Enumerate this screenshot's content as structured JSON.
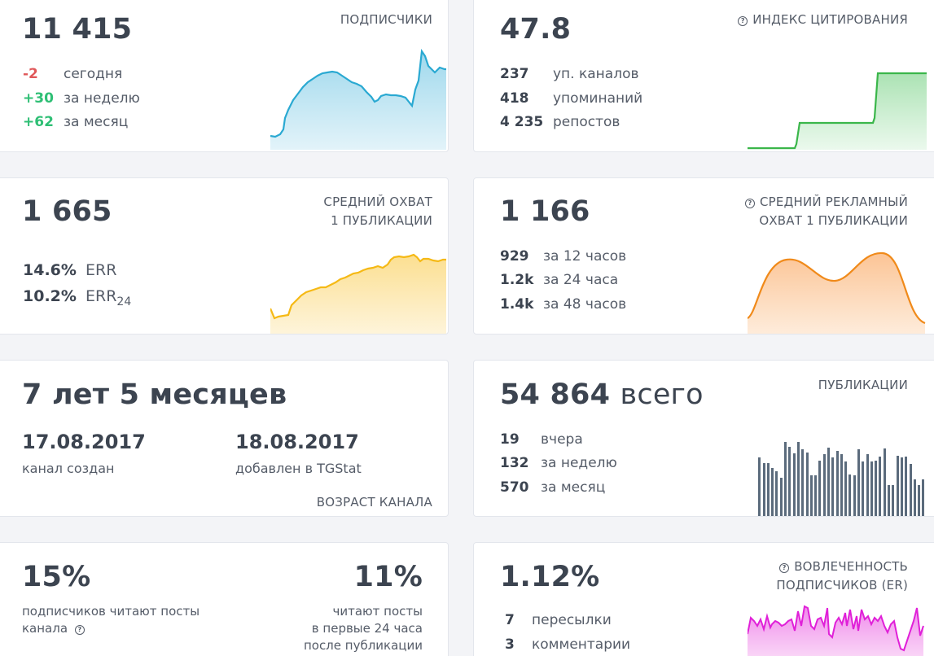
{
  "subscribers": {
    "value": "11 415",
    "title": "ПОДПИСЧИКИ",
    "rows": [
      {
        "value": "-2",
        "label": "сегодня"
      },
      {
        "value": "+30",
        "label": "за неделю"
      },
      {
        "value": "+62",
        "label": "за месяц"
      }
    ],
    "color": "#2aa9d2"
  },
  "citation": {
    "value": "47.8",
    "title": "ИНДЕКС ЦИТИРОВАНИЯ",
    "rows": [
      {
        "value": "237",
        "label": "уп. каналов"
      },
      {
        "value": "418",
        "label": "упоминаний"
      },
      {
        "value": "4 235",
        "label": "репостов"
      }
    ],
    "color": "#3ab64a"
  },
  "reach": {
    "value": "1 665",
    "title_line1": "СРЕДНИЙ ОХВАТ",
    "title_line2": "1 ПУБЛИКАЦИИ",
    "err": {
      "value": "14.6%",
      "label": "ERR"
    },
    "err24": {
      "value": "10.2%",
      "label": "ERR",
      "sub": "24"
    },
    "color": "#f5b915"
  },
  "ad_reach": {
    "value": "1 166",
    "title_line1": "СРЕДНИЙ РЕКЛАМНЫЙ",
    "title_line2": "ОХВАТ 1 ПУБЛИКАЦИИ",
    "rows": [
      {
        "value": "929",
        "label": "за 12 часов"
      },
      {
        "value": "1.2k",
        "label": "за 24 часа"
      },
      {
        "value": "1.4k",
        "label": "за 48 часов"
      }
    ],
    "color": "#f08a1a"
  },
  "age": {
    "value": "7 лет 5 месяцев",
    "created_date": "17.08.2017",
    "created_label": "канал создан",
    "added_date": "18.08.2017",
    "added_label": "добавлен в TGStat",
    "title": "ВОЗРАСТ КАНАЛА"
  },
  "posts": {
    "value": "54 864",
    "unit": "всего",
    "title": "ПУБЛИКАЦИИ",
    "rows": [
      {
        "value": "19",
        "label": "вчера"
      },
      {
        "value": "132",
        "label": "за неделю"
      },
      {
        "value": "570",
        "label": "за месяц"
      }
    ],
    "color": "#5b6b7c"
  },
  "read": {
    "left_value": "15%",
    "left_line1": "подписчиков читают посты",
    "left_line2": "канала",
    "right_value": "11%",
    "right_line1": "читают посты",
    "right_line2": "в первые 24 часа",
    "right_line3": "после публикации"
  },
  "engagement": {
    "value": "1.12%",
    "title_line1": "ВОВЛЕЧЕННОСТЬ",
    "title_line2": "ПОДПИСЧИКОВ (ER)",
    "rows": [
      {
        "value": "7",
        "label": "пересылки"
      },
      {
        "value": "3",
        "label": "комментарии"
      }
    ],
    "color": "#e020d8"
  }
}
